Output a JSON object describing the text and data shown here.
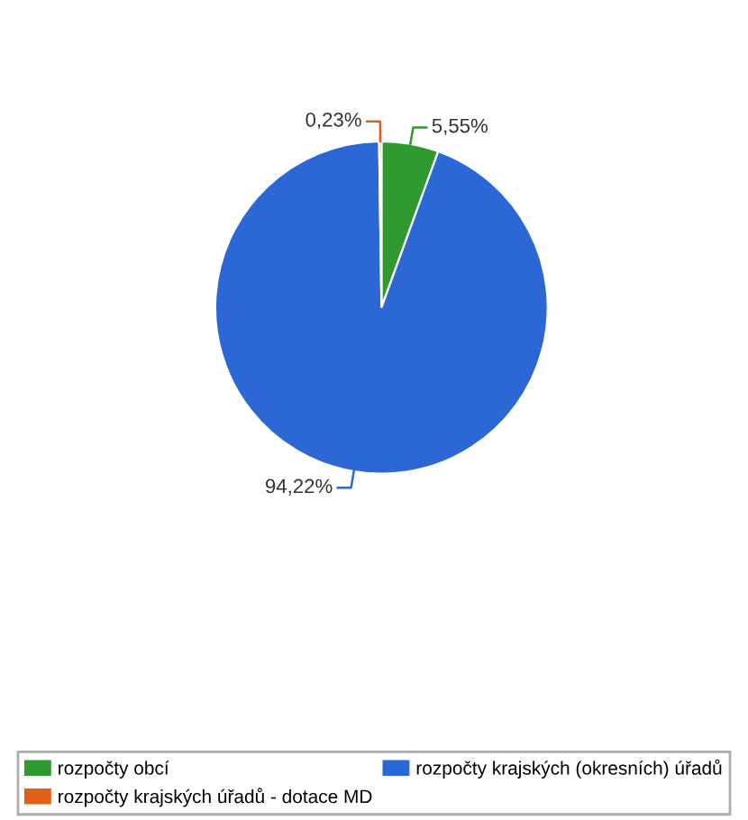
{
  "chart_data": {
    "type": "pie",
    "categories": [
      "rozpočty obcí",
      "rozpočty krajských (okresních) úřadů",
      "rozpočty krajských úřadů - dotace MD"
    ],
    "values": [
      5.55,
      94.22,
      0.23
    ],
    "colors": [
      "#2f9a2f",
      "#2b68d6",
      "#e0601a"
    ],
    "value_labels": [
      "5,55%",
      "94,22%",
      "0,23%"
    ],
    "legend": "bottom"
  }
}
